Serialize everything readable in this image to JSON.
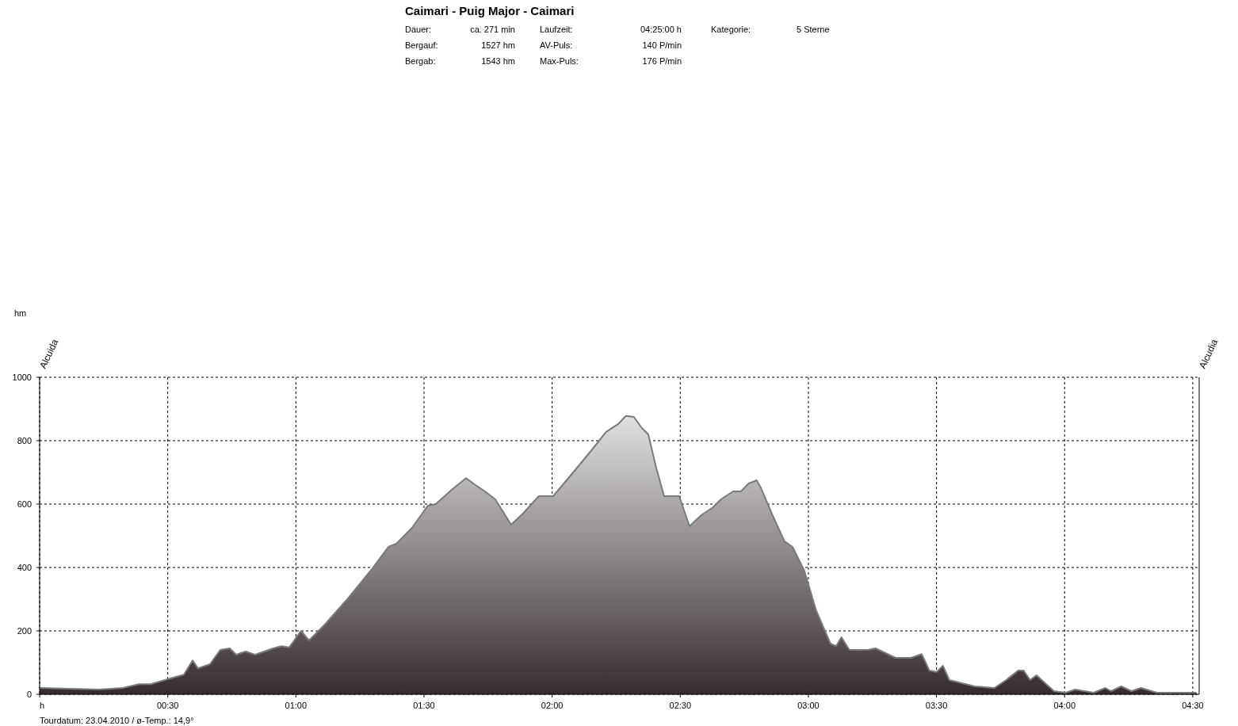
{
  "chart_data": {
    "type": "area",
    "title": "Caimari - Puig Major - Caimari",
    "annotations": [
      "Dauer:",
      "ca. 271 min",
      "Laufzeit:",
      "04:25:00 h",
      "Kategorie:",
      "5 Sterne",
      "Bergauf:",
      "1527 hm",
      "AV-Puls:",
      "140 P/min",
      "Bergab:",
      "1543 hm",
      "Max-Puls:",
      "176 P/min",
      "Tourdatum: 23.04.2010  /  ø-Temp.: 14,9°",
      "Alcuida",
      "Alcudia",
      "hm"
    ],
    "x": [
      0,
      0.232,
      0.325,
      0.387,
      0.433,
      0.51,
      0.563,
      0.597,
      0.618,
      0.665,
      0.705,
      0.742,
      0.767,
      0.804,
      0.841,
      0.912,
      0.943,
      0.974,
      1.02,
      1.051,
      1.113,
      1.206,
      1.299,
      1.361,
      1.392,
      1.453,
      1.515,
      1.546,
      1.608,
      1.664,
      1.701,
      1.738,
      1.778,
      1.84,
      1.886,
      1.948,
      2.004,
      2.072,
      2.149,
      2.211,
      2.257,
      2.288,
      2.319,
      2.35,
      2.375,
      2.406,
      2.437,
      2.496,
      2.536,
      2.582,
      2.628,
      2.659,
      2.706,
      2.737,
      2.767,
      2.798,
      2.814,
      2.86,
      2.907,
      2.938,
      2.984,
      3.03,
      3.086,
      3.108,
      3.129,
      3.16,
      3.231,
      3.262,
      3.34,
      3.401,
      3.442,
      3.472,
      3.5,
      3.525,
      3.55,
      3.649,
      3.726,
      3.772,
      3.819,
      3.84,
      3.865,
      3.89,
      3.958,
      4.004,
      4.041,
      4.113,
      4.159,
      4.181,
      4.221,
      4.261,
      4.298,
      4.36,
      4.515
    ],
    "series": [
      {
        "color": "#362c30",
        "values": [
          20,
          15,
          20,
          32,
          32,
          50,
          62,
          107,
          82,
          95,
          140,
          145,
          125,
          135,
          125,
          145,
          152,
          148,
          200,
          170,
          220,
          305,
          397,
          465,
          475,
          525,
          595,
          600,
          645,
          682,
          660,
          640,
          615,
          535,
          570,
          625,
          625,
          690,
          765,
          828,
          852,
          878,
          875,
          840,
          820,
          715,
          625,
          625,
          530,
          565,
          590,
          615,
          640,
          640,
          665,
          675,
          652,
          565,
          482,
          465,
          390,
          265,
          160,
          152,
          180,
          140,
          140,
          145,
          115,
          115,
          127,
          75,
          70,
          90,
          45,
          25,
          20,
          45,
          75,
          75,
          45,
          60,
          10,
          5,
          15,
          5,
          20,
          10,
          25,
          10,
          20,
          5,
          5
        ]
      }
    ],
    "xlim": [
      0,
      4.525
    ],
    "ylim": [
      0,
      1000
    ],
    "xticks": [
      {
        "value": 0,
        "label": "h"
      },
      {
        "value": 0.5,
        "label": "00:30"
      },
      {
        "value": 1,
        "label": "01:00"
      },
      {
        "value": 1.5,
        "label": "01:30"
      },
      {
        "value": 2,
        "label": "02:00"
      },
      {
        "value": 2.5,
        "label": "02:30"
      },
      {
        "value": 3,
        "label": "03:00"
      },
      {
        "value": 3.5,
        "label": "03:30"
      },
      {
        "value": 4,
        "label": "04:00"
      },
      {
        "value": 4.5,
        "label": "04:30"
      }
    ],
    "yticks": [
      0,
      200,
      400,
      600,
      800,
      1000
    ],
    "grid": true,
    "line_style": "solid"
  }
}
